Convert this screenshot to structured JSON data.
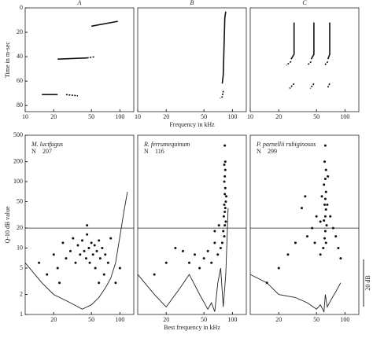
{
  "chart_data": [
    {
      "type": "line",
      "panel_label": "A",
      "ylabel": "Time in m-sec",
      "log_x": true,
      "xlim": [
        10,
        140
      ],
      "xticks": [
        10,
        20,
        50,
        100
      ],
      "ylim": [
        85,
        0
      ],
      "yticks": [
        0,
        20,
        40,
        60,
        80
      ],
      "series": [
        {
          "x": [
            15,
            22
          ],
          "values": [
            71,
            71
          ]
        },
        {
          "x": [
            27,
            36
          ],
          "values": [
            71,
            72
          ],
          "dashed": true
        },
        {
          "x": [
            22,
            45
          ],
          "values": [
            42,
            41
          ]
        },
        {
          "x": [
            45,
            55
          ],
          "values": [
            41,
            40
          ],
          "dashed": true
        },
        {
          "x": [
            50,
            95
          ],
          "values": [
            15,
            11
          ]
        }
      ]
    },
    {
      "type": "line",
      "panel_label": "B",
      "xlabel": "Frequency in kHz",
      "log_x": true,
      "xlim": [
        10,
        140
      ],
      "xticks": [
        10,
        20,
        50,
        100
      ],
      "ylim": [
        85,
        0
      ],
      "series": [
        {
          "x": [
            85,
            83,
            80,
            78
          ],
          "values": [
            3,
            8,
            55,
            62
          ]
        },
        {
          "x": [
            80,
            78,
            74
          ],
          "values": [
            68,
            73,
            74
          ],
          "dashed": true
        }
      ]
    },
    {
      "type": "line",
      "panel_label": "C",
      "log_x": true,
      "xlim": [
        10,
        140
      ],
      "xticks": [
        10,
        20,
        50,
        100
      ],
      "ylim": [
        85,
        0
      ],
      "series": [
        {
          "x": [
            29,
            29,
            27
          ],
          "values": [
            12,
            38,
            42
          ]
        },
        {
          "x": [
            27,
            24
          ],
          "values": [
            44,
            47
          ],
          "dashed": true
        },
        {
          "x": [
            29,
            26
          ],
          "values": [
            62,
            66
          ],
          "dashed": true
        },
        {
          "x": [
            47,
            47,
            44
          ],
          "values": [
            12,
            38,
            42
          ]
        },
        {
          "x": [
            44,
            40
          ],
          "values": [
            44,
            47
          ],
          "dashed": true
        },
        {
          "x": [
            47,
            43
          ],
          "values": [
            62,
            66
          ],
          "dashed": true
        },
        {
          "x": [
            69,
            69,
            66
          ],
          "values": [
            12,
            38,
            42
          ]
        },
        {
          "x": [
            66,
            61
          ],
          "values": [
            44,
            47
          ],
          "dashed": true
        },
        {
          "x": [
            69,
            65
          ],
          "values": [
            62,
            66
          ],
          "dashed": true
        }
      ]
    },
    {
      "type": "scatter",
      "species": "M. lucifugus",
      "n_label": "N",
      "n": 207,
      "ylabel": "Q-10 dB value",
      "log_x": true,
      "log_y": true,
      "xlim": [
        10,
        140
      ],
      "xticks": [
        20,
        50,
        100
      ],
      "ylim": [
        1,
        500
      ],
      "yticks": [
        1,
        2,
        5,
        10,
        20,
        50,
        100,
        200,
        500
      ],
      "hline": 20,
      "x": [
        14,
        17,
        20,
        22,
        25,
        27,
        30,
        32,
        34,
        36,
        38,
        40,
        42,
        44,
        45,
        47,
        48,
        50,
        52,
        54,
        55,
        57,
        60,
        62,
        65,
        68,
        70,
        75,
        80,
        90,
        23,
        45,
        60,
        100
      ],
      "values": [
        6,
        4,
        8,
        5,
        12,
        7,
        9,
        14,
        6,
        11,
        8,
        13,
        9,
        7,
        16,
        10,
        6,
        12,
        8,
        11,
        5,
        9,
        13,
        7,
        10,
        4,
        8,
        6,
        14,
        3,
        3,
        22,
        3,
        5
      ],
      "curve": {
        "x": [
          10,
          15,
          20,
          30,
          40,
          50,
          60,
          70,
          80,
          90,
          100,
          110,
          120
        ],
        "values": [
          6,
          3,
          2,
          1.5,
          1.2,
          1.4,
          1.8,
          2.5,
          3.5,
          6,
          15,
          35,
          70
        ]
      }
    },
    {
      "type": "scatter",
      "species": "R. ferrumequinum",
      "n_label": "N",
      "n": 116,
      "xlabel": "Best frequency in kHz",
      "log_x": true,
      "log_y": true,
      "xlim": [
        10,
        140
      ],
      "xticks": [
        20,
        50,
        100
      ],
      "ylim": [
        1,
        500
      ],
      "hline": 20,
      "x": [
        83,
        82,
        84,
        83,
        82,
        84,
        83,
        85,
        82,
        84,
        83,
        81,
        85,
        83,
        80,
        82,
        78,
        75,
        70,
        65,
        60,
        55,
        50,
        45,
        40,
        35,
        30,
        25,
        20,
        15,
        65,
        72,
        86,
        84
      ],
      "values": [
        350,
        180,
        150,
        120,
        100,
        80,
        65,
        50,
        45,
        40,
        35,
        30,
        25,
        22,
        18,
        15,
        12,
        10,
        8,
        12,
        6,
        9,
        7,
        5,
        8,
        6,
        9,
        10,
        6,
        4,
        18,
        22,
        60,
        200
      ],
      "curve": {
        "x": [
          10,
          15,
          20,
          28,
          35,
          45,
          55,
          60,
          65,
          70,
          75,
          80,
          85,
          90
        ],
        "values": [
          4,
          2,
          1.3,
          2.5,
          4,
          2,
          1.2,
          1.5,
          1.1,
          3,
          5,
          1.3,
          4,
          40
        ]
      }
    },
    {
      "type": "scatter",
      "species": "P. parnellii rubiginosus",
      "n_label": "N",
      "n": 299,
      "scale_bar_label": "20 dB",
      "log_x": true,
      "log_y": true,
      "xlim": [
        10,
        140
      ],
      "xticks": [
        20,
        50,
        100
      ],
      "ylim": [
        1,
        500
      ],
      "hline": 20,
      "x": [
        62,
        61,
        63,
        62,
        60,
        63,
        62,
        61,
        63,
        62,
        60,
        64,
        62,
        61,
        63,
        59,
        55,
        50,
        45,
        40,
        35,
        30,
        25,
        20,
        15,
        70,
        75,
        80,
        85,
        90,
        55,
        48,
        38,
        65,
        57,
        66
      ],
      "values": [
        350,
        200,
        150,
        110,
        90,
        70,
        55,
        45,
        38,
        30,
        26,
        22,
        18,
        14,
        12,
        10,
        25,
        30,
        20,
        15,
        40,
        12,
        8,
        5,
        3,
        30,
        20,
        15,
        10,
        7,
        8,
        12,
        60,
        45,
        60,
        120
      ],
      "curve": {
        "x": [
          10,
          15,
          20,
          30,
          40,
          50,
          55,
          60,
          62,
          65,
          70,
          80,
          90
        ],
        "values": [
          4,
          3,
          2,
          1.8,
          1.5,
          1.2,
          1.4,
          1.1,
          2,
          1.3,
          1.6,
          2.2,
          3
        ]
      }
    }
  ]
}
